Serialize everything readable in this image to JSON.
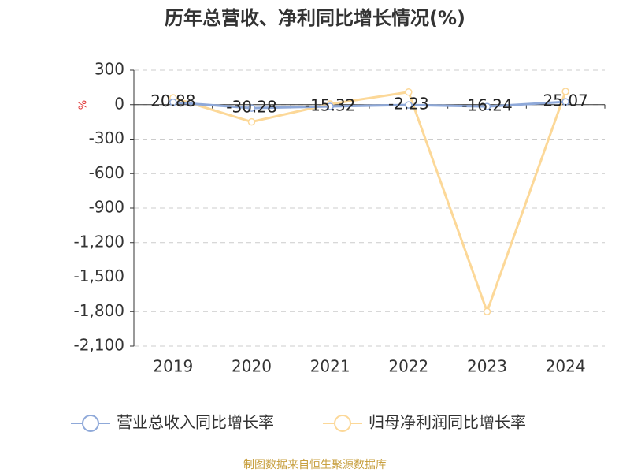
{
  "chart_data": {
    "type": "line",
    "title": "历年总营收、净利同比增长情况(%)",
    "y_label": "%",
    "source": "制图数据来自恒生聚源数据库",
    "categories": [
      "2019",
      "2020",
      "2021",
      "2022",
      "2023",
      "2024"
    ],
    "series": [
      {
        "name": "营业总收入同比增长率",
        "color": "#8fa9d9",
        "values": [
          20.88,
          -30.28,
          -15.32,
          -2.23,
          -16.24,
          25.07
        ]
      },
      {
        "name": "归母净利润同比增长率",
        "color": "#fcd898",
        "values": [
          60,
          -150,
          5,
          110,
          -1800,
          115
        ]
      }
    ],
    "ylim": [
      -2100,
      300
    ],
    "yticks": [
      300,
      0,
      -300,
      -600,
      -900,
      {
        "value": -1200,
        "label": "-1,200"
      },
      {
        "value": -1500,
        "label": "-1,500"
      },
      {
        "value": -1800,
        "label": "-1,800"
      },
      {
        "value": -2100,
        "label": "-2,100"
      }
    ],
    "grid": true
  }
}
